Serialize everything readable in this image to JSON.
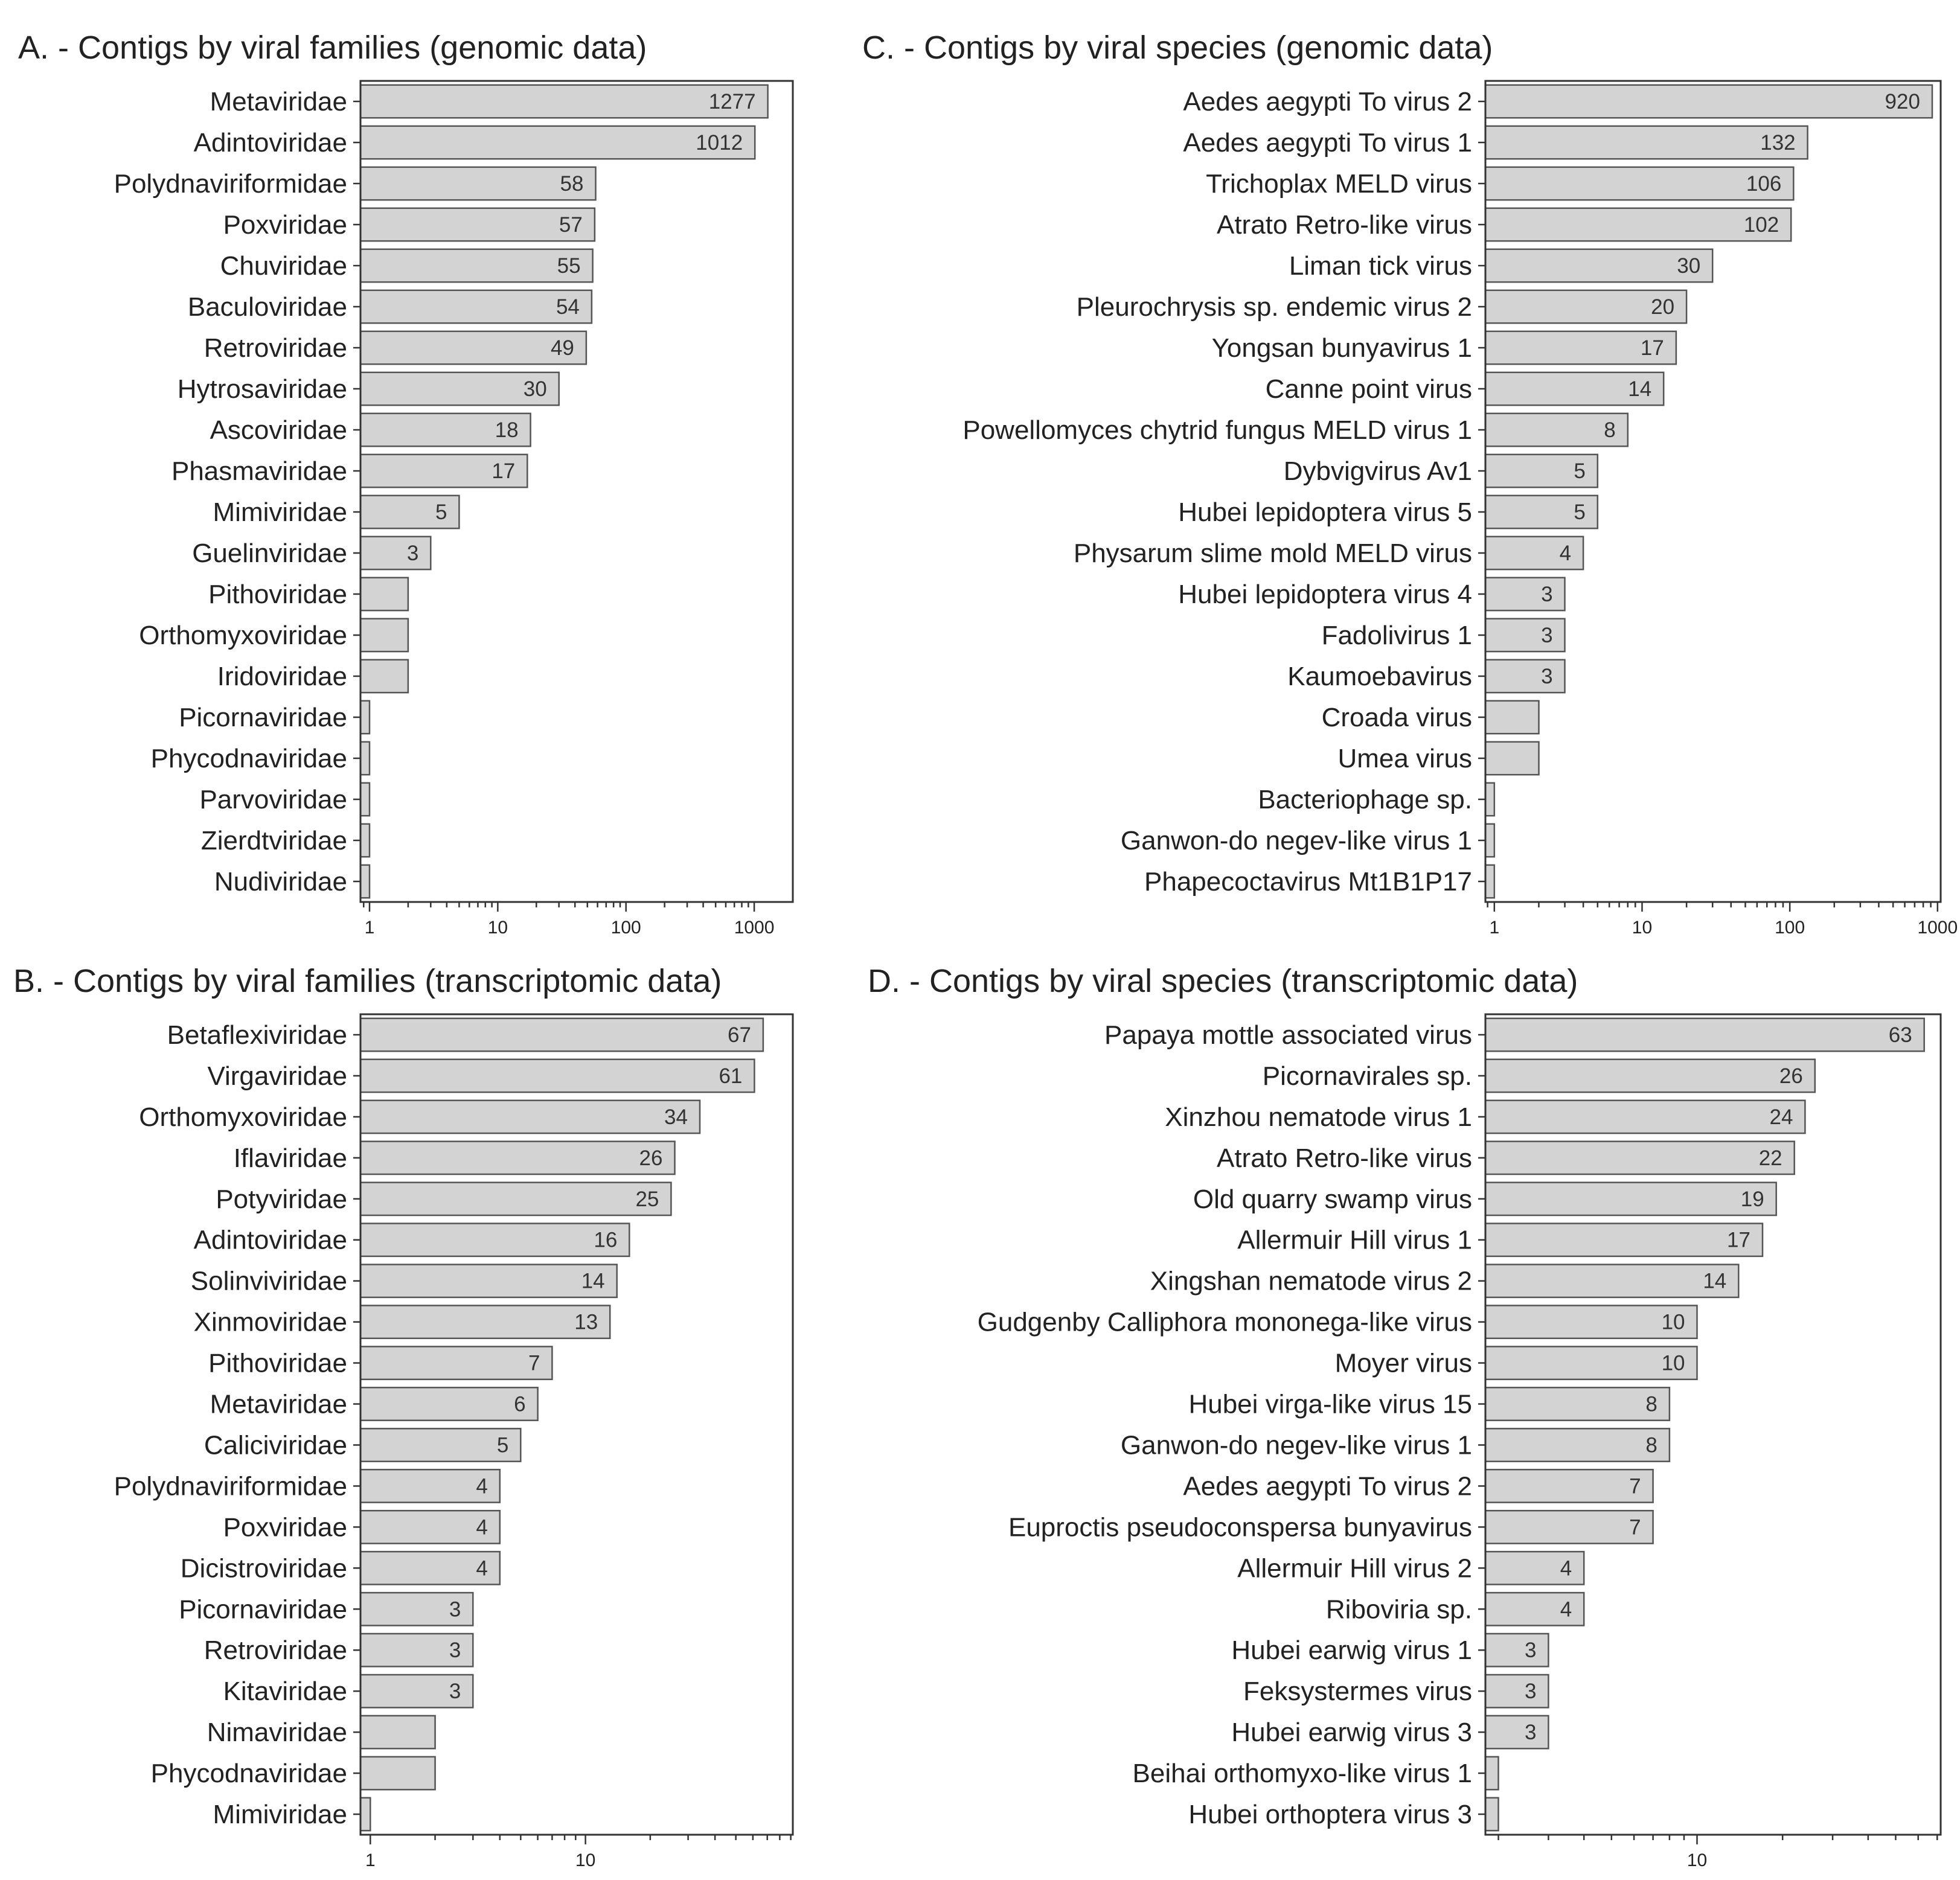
{
  "chart_data": [
    {
      "type": "bar",
      "orientation": "horizontal",
      "x_scale": "log",
      "title": "A. - Contigs by viral families (genomic data)",
      "categories": [
        "Metaviridae",
        "Adintoviridae",
        "Polydnaviriformidae",
        "Poxviridae",
        "Chuviridae",
        "Baculoviridae",
        "Retroviridae",
        "Hytrosaviridae",
        "Ascoviridae",
        "Phasmaviridae",
        "Mimiviridae",
        "Guelinviridae",
        "Pithoviridae",
        "Orthomyxoviridae",
        "Iridoviridae",
        "Picornaviridae",
        "Phycodnaviridae",
        "Parvoviridae",
        "Zierdtviridae",
        "Nudiviridae"
      ],
      "values": [
        1277,
        1012,
        58,
        57,
        55,
        54,
        49,
        30,
        18,
        17,
        5,
        3,
        2,
        2,
        2,
        1,
        1,
        1,
        1,
        1
      ],
      "value_labels": [
        "1277",
        "1012",
        "58",
        "57",
        "55",
        "54",
        "49",
        "30",
        "18",
        "17",
        "5",
        "3",
        "",
        "",
        "",
        "",
        "",
        "",
        "",
        ""
      ],
      "xlim": [
        0.85,
        2000
      ],
      "xticks": [
        1,
        10,
        100,
        1000
      ],
      "xtick_labels": [
        "1",
        "10",
        "100",
        "1000"
      ]
    },
    {
      "type": "bar",
      "orientation": "horizontal",
      "x_scale": "log",
      "title": "B. - Contigs by viral families (transcriptomic data)",
      "categories": [
        "Betaflexiviridae",
        "Virgaviridae",
        "Orthomyxoviridae",
        "Iflaviridae",
        "Potyviridae",
        "Adintoviridae",
        "Solinviviridae",
        "Xinmoviridae",
        "Pithoviridae",
        "Metaviridae",
        "Caliciviridae",
        "Polydnaviriformidae",
        "Poxviridae",
        "Dicistroviridae",
        "Picornaviridae",
        "Retroviridae",
        "Kitaviridae",
        "Nimaviridae",
        "Phycodnaviridae",
        "Mimiviridae"
      ],
      "values": [
        67,
        61,
        34,
        26,
        25,
        16,
        14,
        13,
        7,
        6,
        5,
        4,
        4,
        4,
        3,
        3,
        3,
        2,
        2,
        1
      ],
      "value_labels": [
        "67",
        "61",
        "34",
        "26",
        "25",
        "16",
        "14",
        "13",
        "7",
        "6",
        "5",
        "4",
        "4",
        "4",
        "3",
        "3",
        "3",
        "",
        "",
        ""
      ],
      "xlim": [
        0.9,
        92
      ],
      "xticks": [
        1,
        10
      ],
      "xtick_labels": [
        "1",
        "10"
      ]
    },
    {
      "type": "bar",
      "orientation": "horizontal",
      "x_scale": "log",
      "title": "C. - Contigs by viral species (genomic data)",
      "categories": [
        "Aedes aegypti To virus 2",
        "Aedes aegypti To virus 1",
        "Trichoplax MELD virus",
        "Atrato Retro-like virus",
        "Liman tick virus",
        "Pleurochrysis sp. endemic virus 2",
        "Yongsan bunyavirus 1",
        "Canne point virus",
        "Powellomyces chytrid fungus MELD virus 1",
        "Dybvigvirus Av1",
        "Hubei lepidoptera virus 5",
        "Physarum slime mold MELD virus",
        "Hubei lepidoptera virus 4",
        "Fadolivirus 1",
        "Kaumoebavirus",
        "Croada virus",
        "Umea virus",
        "Bacteriophage sp.",
        "Ganwon-do negev-like virus 1",
        "Phapecoctavirus Mt1B1P17"
      ],
      "values": [
        920,
        132,
        106,
        102,
        30,
        20,
        17,
        14,
        8,
        5,
        5,
        4,
        3,
        3,
        3,
        2,
        2,
        1,
        1,
        1
      ],
      "value_labels": [
        "920",
        "132",
        "106",
        "102",
        "30",
        "20",
        "17",
        "14",
        "8",
        "5",
        "5",
        "4",
        "3",
        "3",
        "3",
        "",
        "",
        "",
        "",
        ""
      ],
      "xlim": [
        0.87,
        1050
      ],
      "xticks": [
        1,
        10,
        100,
        1000
      ],
      "xtick_labels": [
        "1",
        "10",
        "100",
        "1000"
      ]
    },
    {
      "type": "bar",
      "orientation": "horizontal",
      "x_scale": "log",
      "title": "D. - Contigs by viral species (transcriptomic data)",
      "categories": [
        "Papaya mottle associated virus",
        "Picornavirales sp.",
        "Xinzhou nematode virus 1",
        "Atrato Retro-like virus",
        "Old quarry swamp virus",
        "Allermuir Hill virus 1",
        "Xingshan nematode virus 2",
        "Gudgenby Calliphora mononega-like virus",
        "Moyer virus",
        "Hubei virga-like virus 15",
        "Ganwon-do negev-like virus 1",
        "Aedes aegypti To virus 2",
        "Euproctis pseudoconspersa bunyavirus",
        "Allermuir Hill virus 2",
        "Riboviria sp.",
        "Hubei earwig virus 1",
        "Feksystermes virus",
        "Hubei earwig virus 3",
        "Beihai orthomyxo-like virus 1",
        "Hubei orthoptera virus 3"
      ],
      "values": [
        63,
        26,
        24,
        22,
        19,
        17,
        14,
        10,
        10,
        8,
        8,
        7,
        7,
        4,
        4,
        3,
        3,
        3,
        2,
        2
      ],
      "value_labels": [
        "63",
        "26",
        "24",
        "22",
        "19",
        "17",
        "14",
        "10",
        "10",
        "8",
        "8",
        "7",
        "7",
        "4",
        "4",
        "3",
        "3",
        "3",
        "",
        ""
      ],
      "xlim": [
        1.8,
        72
      ],
      "xticks": [
        10
      ],
      "xtick_labels": [
        "10"
      ]
    }
  ]
}
